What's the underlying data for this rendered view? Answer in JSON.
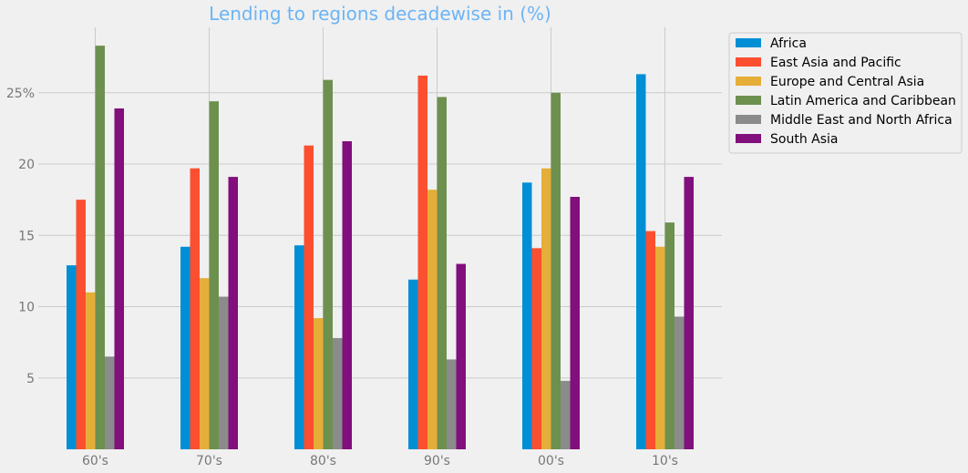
{
  "chart_data": {
    "type": "bar",
    "title": "Lending to regions decadewise in (%)",
    "xlabel": "",
    "ylabel": "",
    "categories": [
      "60's",
      "70's",
      "80's",
      "90's",
      "00's",
      "10's"
    ],
    "ylim": [
      0,
      30
    ],
    "yticks": [
      5,
      10,
      15,
      20,
      25
    ],
    "ytick_labels": [
      "5",
      "10",
      "15",
      "20",
      "25%"
    ],
    "grid": true,
    "legend_position": "outside-top-right",
    "series": [
      {
        "name": "Africa",
        "color": "#008fd5",
        "values": [
          12.9,
          14.2,
          14.3,
          11.9,
          18.7,
          26.3
        ]
      },
      {
        "name": "East Asia and Pacific",
        "color": "#fc4f30",
        "values": [
          17.5,
          19.7,
          21.3,
          26.2,
          14.1,
          15.3
        ]
      },
      {
        "name": "Europe and Central Asia",
        "color": "#e5ae38",
        "values": [
          11.0,
          12.0,
          9.2,
          18.2,
          19.7,
          14.2
        ]
      },
      {
        "name": "Latin America and Caribbean",
        "color": "#6d904f",
        "values": [
          28.3,
          24.4,
          25.9,
          24.7,
          25.0,
          15.9
        ]
      },
      {
        "name": "Middle East and North Africa",
        "color": "#8b8b8b",
        "values": [
          6.5,
          10.7,
          7.8,
          6.3,
          4.8,
          9.3
        ]
      },
      {
        "name": "South Asia",
        "color": "#810f7c",
        "values": [
          23.9,
          19.1,
          21.6,
          13.0,
          17.7,
          19.1
        ]
      }
    ]
  }
}
